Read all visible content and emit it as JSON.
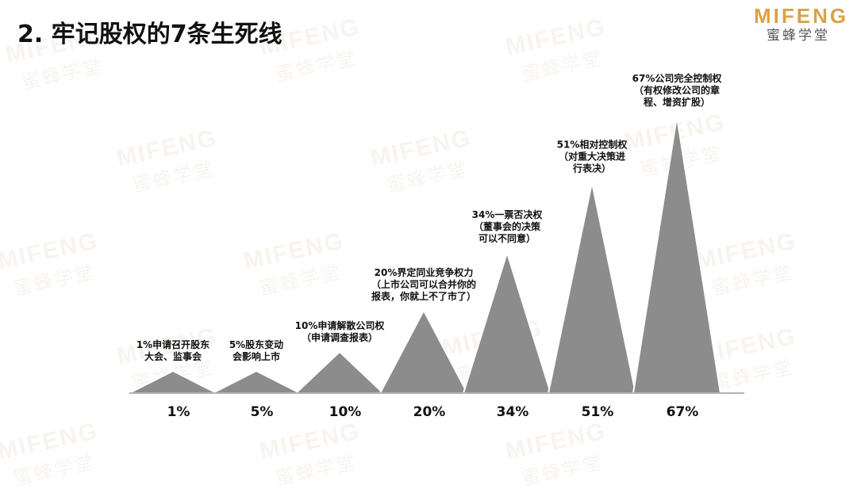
{
  "title": "2. 牢记股权的7条生死线",
  "logo": {
    "en": "MIFENG",
    "cn": "蜜蜂学堂"
  },
  "watermark": {
    "en": "MIFENG",
    "cn": "蜜蜂学堂"
  },
  "colors": {
    "peak_fill": "#8c8c8c",
    "peak_stroke": "#ffffff",
    "axis": "#9a9a9a",
    "logo": "#d9a24a"
  },
  "chart_data": {
    "type": "area",
    "title": "",
    "categories": [
      "1%",
      "5%",
      "10%",
      "20%",
      "34%",
      "51%",
      "67%"
    ],
    "values": [
      1,
      5,
      10,
      20,
      34,
      51,
      67
    ],
    "labels": [
      [
        "1%申请召开股东",
        "大会、监事会"
      ],
      [
        "5%股东变动",
        "会影响上市"
      ],
      [
        "10%申请解散公司权",
        "（申请调查报表）"
      ],
      [
        "20%界定同业竞争权力",
        "（上市公司可以合并你的",
        "报表，你就上不了市了）"
      ],
      [
        "34%一票否决权",
        "（董事会的决策",
        "可以不同意）"
      ],
      [
        "51%相对控制权",
        "（对重大决策进",
        "行表决）"
      ],
      [
        "67%公司完全控制权",
        "（有权修改公司的章",
        "程、增资扩股）"
      ]
    ]
  }
}
